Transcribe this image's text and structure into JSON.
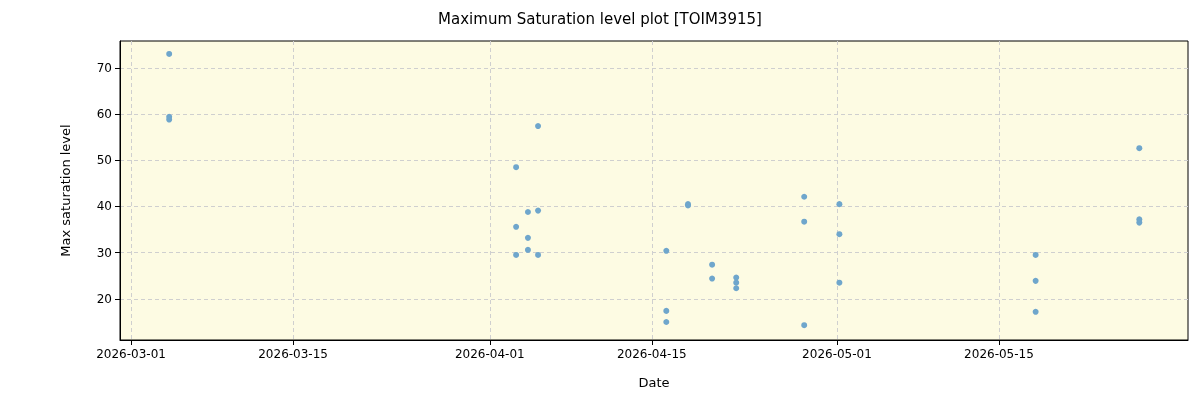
{
  "chart_data": {
    "type": "scatter",
    "title": "Maximum Saturation level plot [TOIM3915]",
    "xlabel": "Date",
    "ylabel": "Max saturation level",
    "x": [
      "2026-03-04T07:00",
      "2026-03-04T07:00",
      "2026-03-04T07:00",
      "2026-04-03T06:30",
      "2026-04-03T06:30",
      "2026-04-03T06:30",
      "2026-04-04T07:00",
      "2026-04-04T07:00",
      "2026-04-04T07:00",
      "2026-04-05T04:00",
      "2026-04-05T04:00",
      "2026-04-05T04:00",
      "2026-04-16T06:00",
      "2026-04-16T06:00",
      "2026-04-16T06:00",
      "2026-04-18T03:00",
      "2026-04-18T03:00",
      "2026-04-20T05:00",
      "2026-04-20T05:00",
      "2026-04-22T07:00",
      "2026-04-22T07:00",
      "2026-04-22T07:00",
      "2026-04-28T04:00",
      "2026-04-28T04:00",
      "2026-04-28T04:00",
      "2026-05-01T05:00",
      "2026-05-01T05:00",
      "2026-05-01T05:00",
      "2026-05-18T04:00",
      "2026-05-18T04:00",
      "2026-05-18T04:00",
      "2026-05-27T03:00",
      "2026-05-27T03:00",
      "2026-05-27T03:00"
    ],
    "values": [
      73.0,
      59.4,
      58.8,
      48.5,
      35.6,
      29.5,
      38.8,
      33.2,
      30.6,
      57.4,
      39.1,
      29.5,
      30.4,
      17.4,
      15.0,
      40.5,
      40.2,
      27.4,
      24.4,
      24.6,
      23.5,
      22.3,
      42.1,
      36.7,
      14.3,
      40.5,
      34.0,
      23.5,
      29.5,
      23.9,
      17.2,
      52.6,
      37.2,
      36.5
    ],
    "color": "#6fa6cc",
    "xlim": [
      "2026-02-28T01:00",
      "2026-05-31T08:00"
    ],
    "xticks": [
      "2026-03-01",
      "2026-03-15",
      "2026-04-01",
      "2026-04-15",
      "2026-05-01",
      "2026-05-15"
    ],
    "ylim": [
      11.1,
      75.8
    ],
    "yticks": [
      20,
      30,
      40,
      50,
      60,
      70
    ],
    "grid": true,
    "marker": "circle"
  }
}
